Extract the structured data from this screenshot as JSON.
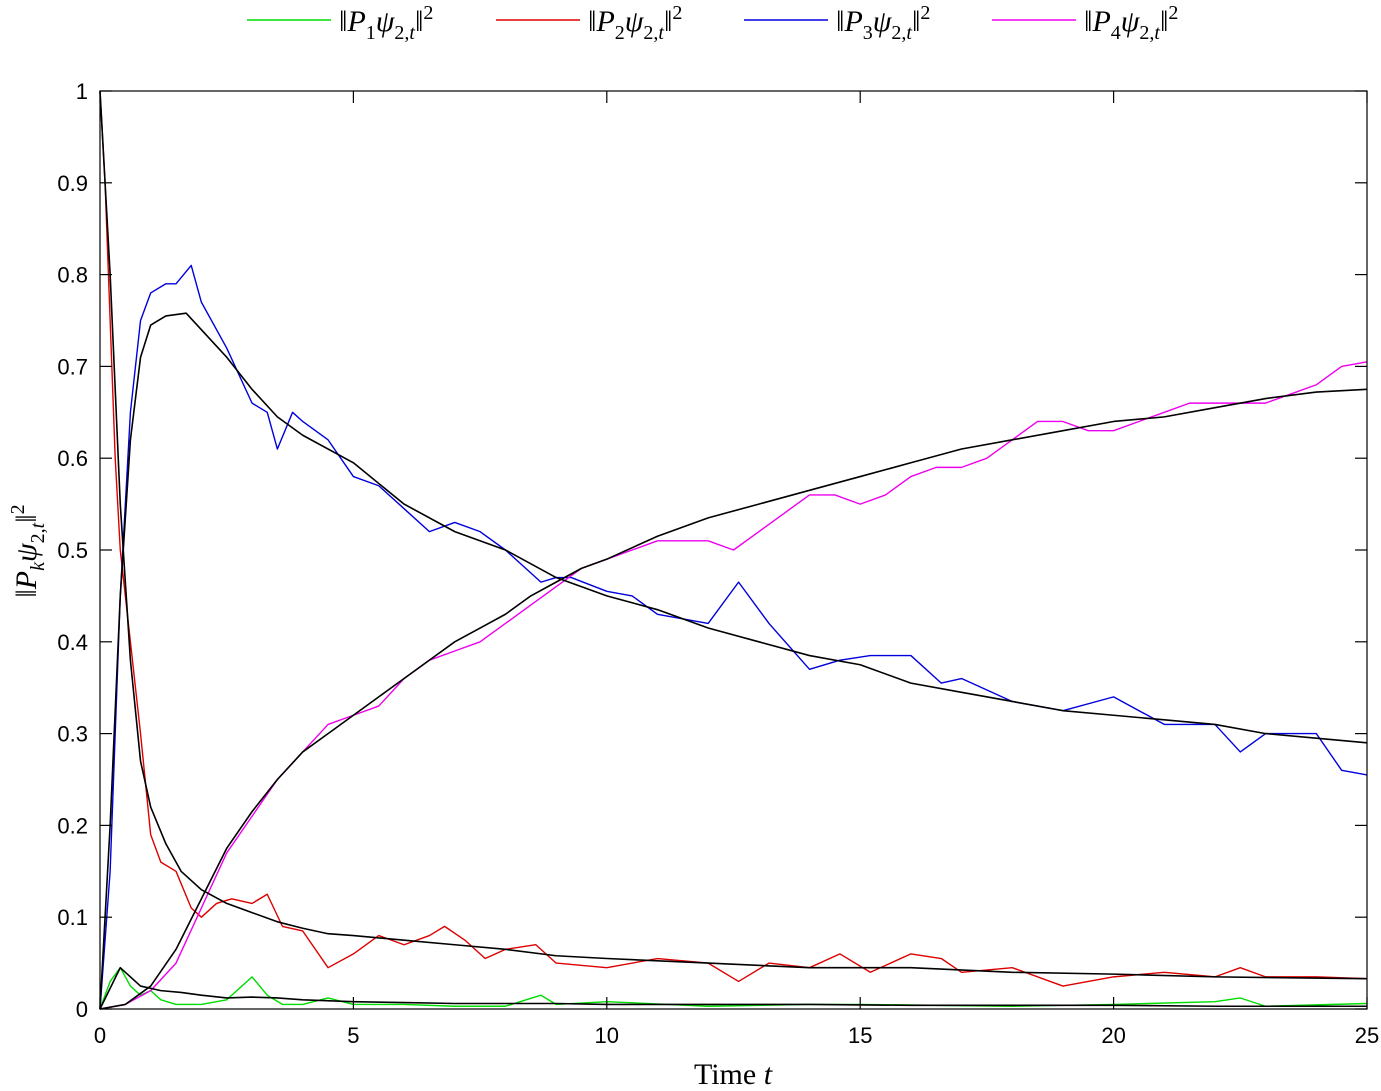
{
  "chart_data": {
    "type": "line",
    "xlabel": "Time t",
    "ylabel": "‖P_k ψ_{2,t}‖²",
    "xlim": [
      0,
      25
    ],
    "ylim": [
      0,
      1
    ],
    "xticks": [
      0,
      5,
      10,
      15,
      20,
      25
    ],
    "yticks": [
      0,
      0.1,
      0.2,
      0.3,
      0.4,
      0.5,
      0.6,
      0.7,
      0.8,
      0.9,
      1
    ],
    "xtick_labels": [
      "0",
      "5",
      "10",
      "15",
      "20",
      "25"
    ],
    "ytick_labels": [
      "0",
      "0.1",
      "0.2",
      "0.3",
      "0.4",
      "0.5",
      "0.6",
      "0.7",
      "0.8",
      "0.9",
      "1"
    ],
    "grid": false,
    "legend_position": "top",
    "series": [
      {
        "name": "‖P1ψ2,t‖²",
        "color": "#00dd00",
        "x": [
          0,
          0.2,
          0.4,
          0.6,
          0.8,
          1.0,
          1.2,
          1.5,
          2.0,
          2.5,
          3.0,
          3.3,
          3.6,
          4.0,
          4.5,
          5.0,
          6.0,
          7.0,
          8.0,
          8.7,
          9.0,
          10.0,
          12.0,
          14.0,
          15.0,
          18.0,
          20.0,
          22.0,
          22.5,
          23.0,
          25.0
        ],
        "y": [
          0,
          0.03,
          0.045,
          0.025,
          0.015,
          0.02,
          0.01,
          0.005,
          0.005,
          0.01,
          0.035,
          0.015,
          0.005,
          0.005,
          0.012,
          0.005,
          0.005,
          0.003,
          0.003,
          0.015,
          0.005,
          0.008,
          0.003,
          0.005,
          0.005,
          0.003,
          0.005,
          0.008,
          0.012,
          0.003,
          0.006
        ]
      },
      {
        "name": "‖P2ψ2,t‖²",
        "color": "#dd0000",
        "x": [
          0,
          0.1,
          0.2,
          0.3,
          0.4,
          0.5,
          0.6,
          0.8,
          1.0,
          1.2,
          1.5,
          1.8,
          2.0,
          2.3,
          2.6,
          3.0,
          3.3,
          3.6,
          4.0,
          4.5,
          5.0,
          5.5,
          6.0,
          6.5,
          6.8,
          7.2,
          7.6,
          8.0,
          8.6,
          9.0,
          10.0,
          11.0,
          12.0,
          12.6,
          13.2,
          14.0,
          14.6,
          15.2,
          16.0,
          16.6,
          17.0,
          18.0,
          19.0,
          20.0,
          21.0,
          22.0,
          22.5,
          23.0,
          24.0,
          25.0
        ],
        "y": [
          1.0,
          0.9,
          0.75,
          0.6,
          0.5,
          0.45,
          0.4,
          0.3,
          0.19,
          0.16,
          0.15,
          0.11,
          0.1,
          0.115,
          0.12,
          0.115,
          0.125,
          0.09,
          0.085,
          0.045,
          0.06,
          0.08,
          0.07,
          0.08,
          0.09,
          0.075,
          0.055,
          0.065,
          0.07,
          0.05,
          0.045,
          0.055,
          0.05,
          0.03,
          0.05,
          0.045,
          0.06,
          0.04,
          0.06,
          0.055,
          0.04,
          0.045,
          0.025,
          0.035,
          0.04,
          0.035,
          0.045,
          0.035,
          0.035,
          0.033
        ]
      },
      {
        "name": "‖P3ψ2,t‖²",
        "color": "#0000dd",
        "x": [
          0,
          0.2,
          0.4,
          0.6,
          0.8,
          1.0,
          1.3,
          1.5,
          1.8,
          2.0,
          2.5,
          3.0,
          3.3,
          3.5,
          3.8,
          4.0,
          4.5,
          5.0,
          5.5,
          6.0,
          6.5,
          7.0,
          7.5,
          8.0,
          8.3,
          8.7,
          9.0,
          9.3,
          10.0,
          10.5,
          11.0,
          12.0,
          12.6,
          13.2,
          14.0,
          14.6,
          15.2,
          16.0,
          16.6,
          17.0,
          18.0,
          19.0,
          20.0,
          21.0,
          22.0,
          22.5,
          23.0,
          24.0,
          24.5,
          25.0
        ],
        "y": [
          0,
          0.15,
          0.45,
          0.65,
          0.75,
          0.78,
          0.79,
          0.79,
          0.81,
          0.77,
          0.72,
          0.66,
          0.65,
          0.61,
          0.65,
          0.64,
          0.62,
          0.58,
          0.57,
          0.545,
          0.52,
          0.53,
          0.52,
          0.5,
          0.485,
          0.465,
          0.47,
          0.47,
          0.455,
          0.45,
          0.43,
          0.42,
          0.465,
          0.42,
          0.37,
          0.38,
          0.385,
          0.385,
          0.355,
          0.36,
          0.335,
          0.325,
          0.34,
          0.31,
          0.31,
          0.28,
          0.3,
          0.3,
          0.26,
          0.255
        ]
      },
      {
        "name": "‖P4ψ2,t‖²",
        "color": "#ee00ee",
        "x": [
          0,
          0.5,
          1.0,
          1.5,
          2.0,
          2.5,
          3.0,
          3.5,
          4.0,
          4.5,
          5.0,
          5.5,
          6.0,
          6.5,
          7.0,
          7.5,
          8.0,
          8.5,
          9.0,
          9.5,
          10.0,
          10.5,
          11.0,
          11.5,
          12.0,
          12.5,
          13.0,
          13.5,
          14.0,
          14.5,
          15.0,
          15.5,
          16.0,
          16.5,
          17.0,
          17.5,
          18.0,
          18.5,
          19.0,
          19.5,
          20.0,
          20.5,
          21.0,
          21.5,
          22.0,
          22.5,
          23.0,
          23.5,
          24.0,
          24.5,
          25.0
        ],
        "y": [
          0,
          0.005,
          0.02,
          0.05,
          0.11,
          0.17,
          0.21,
          0.25,
          0.28,
          0.31,
          0.32,
          0.33,
          0.36,
          0.38,
          0.39,
          0.4,
          0.42,
          0.44,
          0.46,
          0.48,
          0.49,
          0.5,
          0.51,
          0.51,
          0.51,
          0.5,
          0.52,
          0.54,
          0.56,
          0.56,
          0.55,
          0.56,
          0.58,
          0.59,
          0.59,
          0.6,
          0.62,
          0.64,
          0.64,
          0.63,
          0.63,
          0.64,
          0.65,
          0.66,
          0.66,
          0.66,
          0.66,
          0.67,
          0.68,
          0.7,
          0.705
        ]
      },
      {
        "name": "",
        "color": "#000000",
        "x": [
          0,
          0.4,
          0.8,
          1.2,
          1.6,
          2.0,
          2.5,
          3.0,
          3.5,
          4.0,
          5.0,
          6.0,
          7.0,
          8.0,
          9.0,
          10.0,
          12.0,
          14.0,
          16.0,
          18.0,
          20.0,
          22.0,
          25.0
        ],
        "y": [
          0,
          0.045,
          0.025,
          0.02,
          0.018,
          0.015,
          0.012,
          0.013,
          0.012,
          0.01,
          0.008,
          0.007,
          0.006,
          0.006,
          0.006,
          0.005,
          0.005,
          0.005,
          0.004,
          0.004,
          0.004,
          0.003,
          0.003
        ]
      },
      {
        "name": "",
        "color": "#000000",
        "x": [
          0,
          0.2,
          0.4,
          0.6,
          0.8,
          1.0,
          1.3,
          1.6,
          2.0,
          2.5,
          3.0,
          3.5,
          4.0,
          4.5,
          5.0,
          6.0,
          7.0,
          8.0,
          9.0,
          10.0,
          12.0,
          14.0,
          16.0,
          18.0,
          20.0,
          22.0,
          25.0
        ],
        "y": [
          1.0,
          0.8,
          0.55,
          0.38,
          0.27,
          0.22,
          0.18,
          0.15,
          0.13,
          0.115,
          0.105,
          0.095,
          0.088,
          0.082,
          0.08,
          0.075,
          0.07,
          0.065,
          0.058,
          0.055,
          0.05,
          0.045,
          0.045,
          0.04,
          0.038,
          0.035,
          0.033
        ]
      },
      {
        "name": "",
        "color": "#000000",
        "x": [
          0,
          0.2,
          0.4,
          0.6,
          0.8,
          1.0,
          1.3,
          1.7,
          2.0,
          2.5,
          3.0,
          3.5,
          4.0,
          5.0,
          6.0,
          7.0,
          8.0,
          9.0,
          10.0,
          11.0,
          12.0,
          13.0,
          14.0,
          15.0,
          16.0,
          17.0,
          18.0,
          19.0,
          20.0,
          21.0,
          22.0,
          23.0,
          24.0,
          25.0
        ],
        "y": [
          0,
          0.2,
          0.45,
          0.62,
          0.71,
          0.745,
          0.755,
          0.758,
          0.74,
          0.71,
          0.675,
          0.645,
          0.625,
          0.595,
          0.55,
          0.52,
          0.5,
          0.47,
          0.45,
          0.435,
          0.415,
          0.4,
          0.385,
          0.375,
          0.355,
          0.345,
          0.335,
          0.325,
          0.32,
          0.315,
          0.31,
          0.3,
          0.295,
          0.29
        ]
      },
      {
        "name": "",
        "color": "#000000",
        "x": [
          0,
          0.5,
          1.0,
          1.5,
          2.0,
          2.5,
          3.0,
          3.5,
          4.0,
          4.5,
          5.0,
          5.5,
          6.0,
          6.5,
          7.0,
          7.5,
          8.0,
          8.5,
          9.0,
          9.5,
          10.0,
          11.0,
          12.0,
          13.0,
          14.0,
          15.0,
          16.0,
          17.0,
          18.0,
          19.0,
          20.0,
          21.0,
          22.0,
          23.0,
          24.0,
          25.0
        ],
        "y": [
          0,
          0.005,
          0.025,
          0.065,
          0.12,
          0.175,
          0.215,
          0.25,
          0.28,
          0.3,
          0.32,
          0.34,
          0.36,
          0.38,
          0.4,
          0.415,
          0.43,
          0.45,
          0.465,
          0.48,
          0.49,
          0.515,
          0.535,
          0.55,
          0.565,
          0.58,
          0.595,
          0.61,
          0.62,
          0.63,
          0.64,
          0.645,
          0.655,
          0.665,
          0.672,
          0.675
        ]
      }
    ]
  }
}
